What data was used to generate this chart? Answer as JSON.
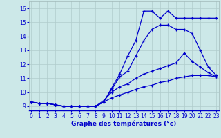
{
  "xlabel": "Graphe des températures (°c)",
  "bg_color": "#cce8e8",
  "grid_color": "#b0cccc",
  "line_color": "#0000cc",
  "x_ticks": [
    0,
    1,
    2,
    3,
    4,
    5,
    6,
    7,
    8,
    9,
    10,
    11,
    12,
    13,
    14,
    15,
    16,
    17,
    18,
    19,
    20,
    21,
    22,
    23
  ],
  "y_ticks": [
    9,
    10,
    11,
    12,
    13,
    14,
    15,
    16
  ],
  "ylim": [
    8.7,
    16.5
  ],
  "xlim": [
    -0.3,
    23.3
  ],
  "series": [
    [
      9.3,
      9.2,
      9.2,
      9.1,
      9.0,
      9.0,
      9.0,
      9.0,
      9.0,
      9.3,
      10.3,
      11.3,
      12.6,
      13.7,
      15.8,
      15.8,
      15.3,
      15.8,
      15.3,
      15.3,
      15.3,
      15.3,
      15.3,
      15.3
    ],
    [
      9.3,
      9.2,
      9.2,
      9.1,
      9.0,
      9.0,
      9.0,
      9.0,
      9.0,
      9.3,
      10.2,
      11.1,
      11.5,
      12.6,
      13.7,
      14.5,
      14.8,
      14.8,
      14.5,
      14.5,
      14.2,
      13.0,
      11.8,
      11.2
    ],
    [
      9.3,
      9.2,
      9.2,
      9.1,
      9.0,
      9.0,
      9.0,
      9.0,
      9.0,
      9.4,
      10.0,
      10.4,
      10.6,
      11.0,
      11.3,
      11.5,
      11.7,
      11.9,
      12.1,
      12.8,
      12.2,
      11.8,
      11.4,
      11.1
    ],
    [
      9.3,
      9.2,
      9.2,
      9.1,
      9.0,
      9.0,
      9.0,
      9.0,
      9.0,
      9.3,
      9.6,
      9.8,
      10.0,
      10.2,
      10.4,
      10.5,
      10.7,
      10.8,
      11.0,
      11.1,
      11.2,
      11.2,
      11.2,
      11.1
    ]
  ],
  "tick_fontsize": 5.5,
  "xlabel_fontsize": 6.5
}
